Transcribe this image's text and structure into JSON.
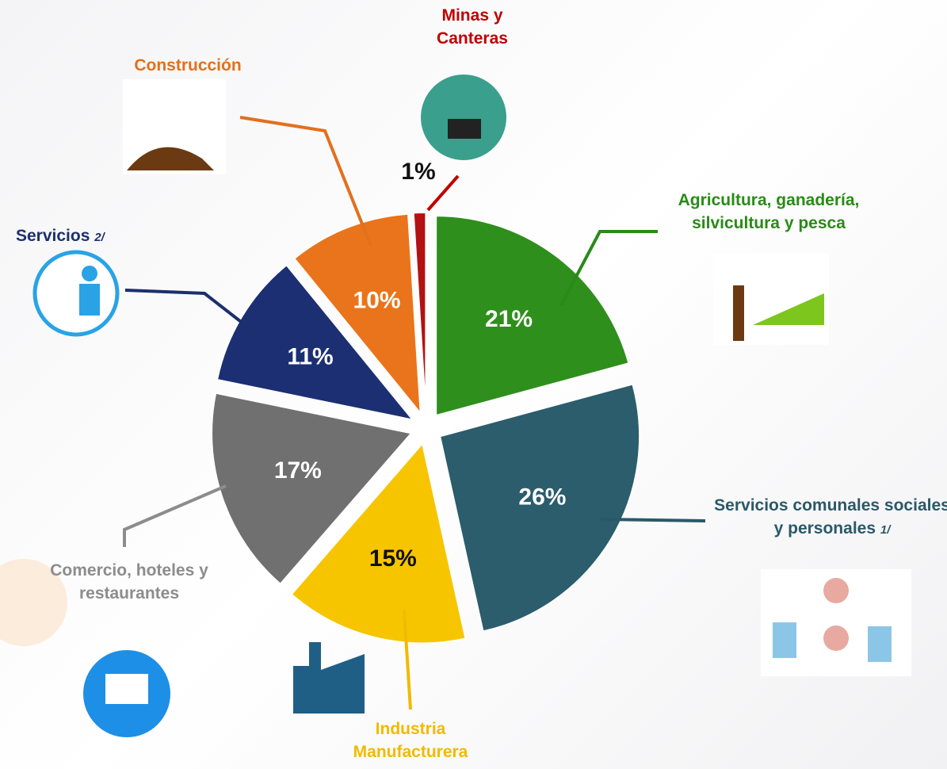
{
  "chart_data": {
    "type": "pie",
    "categories": [
      "Agricultura, ganadería, silvicultura y pesca",
      "Servicios comunales sociales y personales",
      "Industria Manufacturera",
      "Comercio, hoteles y restaurantes",
      "Servicios",
      "Construcción",
      "Minas y Canteras"
    ],
    "footnotes": [
      null,
      "1/",
      null,
      null,
      "2/",
      null,
      null
    ],
    "values": [
      21,
      26,
      15,
      17,
      11,
      10,
      1
    ],
    "value_labels": [
      "21%",
      "26%",
      "15%",
      "17%",
      "11%",
      "10%",
      "1%"
    ],
    "colors": [
      "#2f8f1c",
      "#2b5d6c",
      "#f6c500",
      "#707070",
      "#1c2f72",
      "#ea741b",
      "#b31212"
    ],
    "label_colors": [
      "#2a8a18",
      "#2b5868",
      "#f2b900",
      "#8c8c8c",
      "#1c2f6e",
      "#e2701c",
      "#c00000"
    ]
  }
}
